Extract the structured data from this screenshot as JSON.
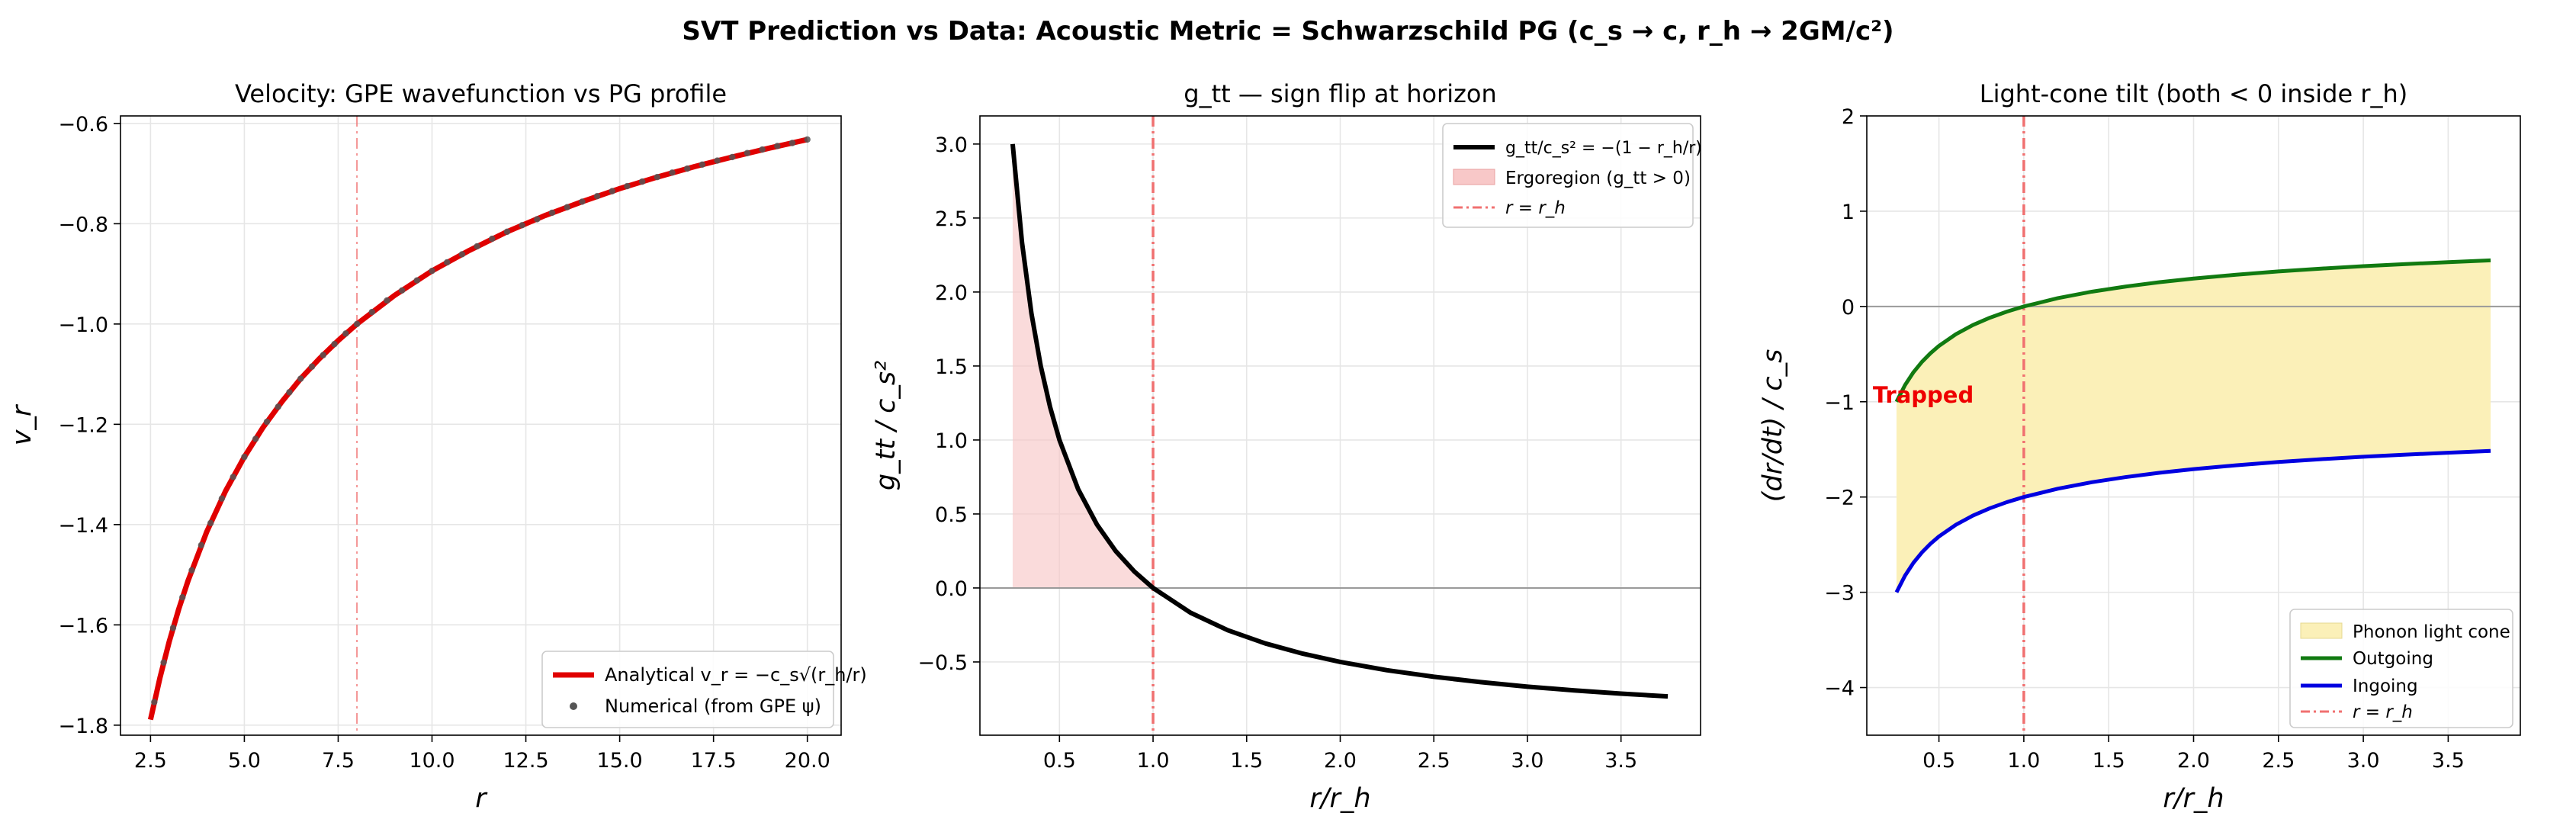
{
  "figure": {
    "suptitle": "SVT Prediction vs Data:  Acoustic Metric  =  Schwarzschild PG  (c_s → c,  r_h → 2GM/c²)"
  },
  "colors": {
    "analytical": "#e00000",
    "numerical": "#555555",
    "gtt": "#000000",
    "ergoregion": "#f8c8c8",
    "horizon": "#f07070",
    "outgoing": "#117a11",
    "ingoing": "#0000e0",
    "lightcone": "#fbf0b8",
    "trapped": "#ee0000"
  },
  "chart_data": [
    {
      "type": "line",
      "title": "Velocity: GPE wavefunction vs PG profile",
      "xlabel": "r",
      "ylabel": "v_r",
      "xlim": [
        1.7,
        20.9
      ],
      "ylim": [
        -1.82,
        -0.585
      ],
      "xticks": [
        2.5,
        5.0,
        7.5,
        10.0,
        12.5,
        15.0,
        17.5,
        20.0
      ],
      "xtick_labels": [
        "2.5",
        "5.0",
        "7.5",
        "10.0",
        "12.5",
        "15.0",
        "17.5",
        "20.0"
      ],
      "yticks": [
        -1.8,
        -1.6,
        -1.4,
        -1.2,
        -1.0,
        -0.8,
        -0.6
      ],
      "ytick_labels": [
        "−1.8",
        "−1.6",
        "−1.4",
        "−1.2",
        "−1.0",
        "−0.8",
        "−0.6"
      ],
      "grid": true,
      "legend_loc": "lower-right",
      "vline": 8.0,
      "series": [
        {
          "name": "Analytical  v_r = −c_s√(r_h/r)",
          "style": "line",
          "x": [
            2.5,
            2.75,
            3.0,
            3.25,
            3.5,
            4.0,
            4.5,
            5.0,
            5.5,
            6.0,
            6.5,
            7.0,
            7.5,
            8.0,
            9.0,
            10.0,
            11.0,
            12.0,
            13.0,
            14.0,
            15.0,
            16.0,
            17.0,
            18.0,
            19.0,
            20.0
          ],
          "y": [
            -1.789,
            -1.706,
            -1.633,
            -1.569,
            -1.512,
            -1.414,
            -1.333,
            -1.265,
            -1.206,
            -1.155,
            -1.109,
            -1.069,
            -1.033,
            -1.0,
            -0.943,
            -0.894,
            -0.853,
            -0.816,
            -0.784,
            -0.756,
            -0.73,
            -0.707,
            -0.686,
            -0.667,
            -0.649,
            -0.632
          ]
        },
        {
          "name": "Numerical (from GPE ψ)",
          "style": "points",
          "x": [
            2.6,
            2.85,
            3.1,
            3.35,
            3.6,
            3.85,
            4.1,
            4.4,
            4.7,
            5.0,
            5.3,
            5.6,
            5.9,
            6.2,
            6.5,
            6.8,
            7.1,
            7.4,
            7.7,
            8.0,
            8.4,
            8.8,
            9.2,
            9.6,
            10.0,
            10.4,
            10.8,
            11.2,
            11.6,
            12.0,
            12.4,
            12.8,
            13.2,
            13.6,
            14.0,
            14.4,
            14.8,
            15.2,
            15.6,
            16.0,
            16.4,
            16.8,
            17.2,
            17.6,
            18.0,
            18.4,
            18.8,
            19.2,
            19.6,
            20.0
          ],
          "y": [
            -1.754,
            -1.675,
            -1.606,
            -1.545,
            -1.491,
            -1.441,
            -1.397,
            -1.348,
            -1.305,
            -1.265,
            -1.229,
            -1.195,
            -1.165,
            -1.136,
            -1.109,
            -1.085,
            -1.062,
            -1.04,
            -1.019,
            -1.0,
            -0.976,
            -0.953,
            -0.933,
            -0.913,
            -0.894,
            -0.877,
            -0.861,
            -0.845,
            -0.83,
            -0.816,
            -0.803,
            -0.791,
            -0.778,
            -0.767,
            -0.756,
            -0.745,
            -0.735,
            -0.725,
            -0.716,
            -0.707,
            -0.698,
            -0.69,
            -0.682,
            -0.674,
            -0.667,
            -0.659,
            -0.652,
            -0.645,
            -0.639,
            -0.632
          ]
        }
      ]
    },
    {
      "type": "line",
      "title": "g_tt  — sign flip at horizon",
      "xlabel": "r/r_h",
      "ylabel": "g_tt / c_s²",
      "xlim": [
        0.075,
        3.925
      ],
      "ylim": [
        -0.995,
        3.19
      ],
      "xticks": [
        0.5,
        1.0,
        1.5,
        2.0,
        2.5,
        3.0,
        3.5
      ],
      "xtick_labels": [
        "0.5",
        "1.0",
        "1.5",
        "2.0",
        "2.5",
        "3.0",
        "3.5"
      ],
      "yticks": [
        -0.5,
        0.0,
        0.5,
        1.0,
        1.5,
        2.0,
        2.5,
        3.0
      ],
      "ytick_labels": [
        "−0.5",
        "0.0",
        "0.5",
        "1.0",
        "1.5",
        "2.0",
        "2.5",
        "3.0"
      ],
      "grid": true,
      "legend_loc": "upper-right",
      "vline": 1.0,
      "hline": 0.0,
      "series": [
        {
          "name": "g_tt/c_s² = −(1 − r_h/r)",
          "x": [
            0.25,
            0.3,
            0.35,
            0.4,
            0.45,
            0.5,
            0.6,
            0.7,
            0.8,
            0.9,
            1.0,
            1.2,
            1.4,
            1.6,
            1.8,
            2.0,
            2.25,
            2.5,
            2.75,
            3.0,
            3.25,
            3.5,
            3.75
          ],
          "y": [
            3.0,
            2.333,
            1.857,
            1.5,
            1.222,
            1.0,
            0.667,
            0.429,
            0.25,
            0.111,
            0.0,
            -0.167,
            -0.286,
            -0.375,
            -0.444,
            -0.5,
            -0.556,
            -0.6,
            -0.636,
            -0.667,
            -0.692,
            -0.714,
            -0.733
          ]
        }
      ],
      "ergoregion_label": "Ergoregion (g_tt > 0)",
      "horizon_label": "r = r_h"
    },
    {
      "type": "area",
      "title": "Light-cone tilt  (both < 0 inside r_h)",
      "xlabel": "r/r_h",
      "ylabel": "(dr/dt) / c_s",
      "xlim": [
        0.075,
        3.925
      ],
      "ylim": [
        -4.5,
        2.0
      ],
      "xticks": [
        0.5,
        1.0,
        1.5,
        2.0,
        2.5,
        3.0,
        3.5
      ],
      "xtick_labels": [
        "0.5",
        "1.0",
        "1.5",
        "2.0",
        "2.5",
        "3.0",
        "3.5"
      ],
      "yticks": [
        -4,
        -3,
        -2,
        -1,
        0,
        1,
        2
      ],
      "ytick_labels": [
        "−4",
        "−3",
        "−2",
        "−1",
        "0",
        "1",
        "2"
      ],
      "grid": true,
      "legend_loc": "lower-right",
      "vline": 1.0,
      "hline": 0.0,
      "annotation": "Trapped",
      "annotation_pos": [
        0.2,
        -0.93
      ],
      "series": [
        {
          "name": "Outgoing",
          "x": [
            0.25,
            0.3,
            0.35,
            0.4,
            0.45,
            0.5,
            0.6,
            0.7,
            0.8,
            0.9,
            1.0,
            1.2,
            1.4,
            1.6,
            1.8,
            2.0,
            2.25,
            2.5,
            2.75,
            3.0,
            3.25,
            3.5,
            3.75
          ],
          "y": [
            -1.0,
            -0.826,
            -0.69,
            -0.581,
            -0.491,
            -0.414,
            -0.291,
            -0.195,
            -0.118,
            -0.054,
            0.0,
            0.087,
            0.155,
            0.209,
            0.255,
            0.293,
            0.333,
            0.368,
            0.397,
            0.423,
            0.445,
            0.465,
            0.484
          ]
        },
        {
          "name": "Ingoing",
          "x": [
            0.25,
            0.3,
            0.35,
            0.4,
            0.45,
            0.5,
            0.6,
            0.7,
            0.8,
            0.9,
            1.0,
            1.2,
            1.4,
            1.6,
            1.8,
            2.0,
            2.25,
            2.5,
            2.75,
            3.0,
            3.25,
            3.5,
            3.75
          ],
          "y": [
            -3.0,
            -2.826,
            -2.69,
            -2.581,
            -2.491,
            -2.414,
            -2.291,
            -2.195,
            -2.118,
            -2.054,
            -2.0,
            -1.913,
            -1.845,
            -1.791,
            -1.745,
            -1.707,
            -1.667,
            -1.632,
            -1.603,
            -1.577,
            -1.555,
            -1.535,
            -1.516
          ]
        }
      ],
      "cone_label": "Phonon light cone",
      "horizon_label": "r = r_h"
    }
  ]
}
